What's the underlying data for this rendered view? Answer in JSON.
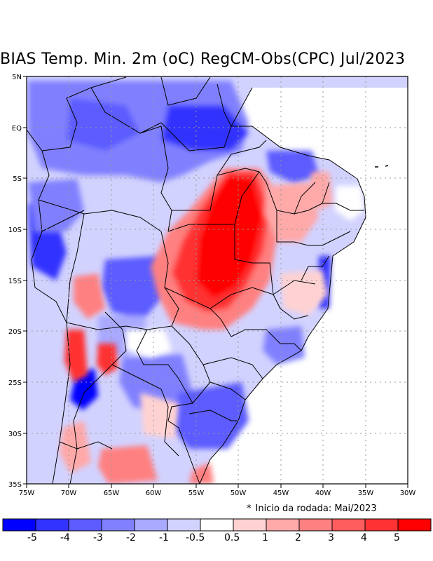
{
  "title": "BIAS Temp. Min. 2m (oC) RegCM-Obs(CPC) Jul/2023",
  "axes": {
    "lat_labels": [
      "5N",
      "EQ",
      "5S",
      "10S",
      "15S",
      "20S",
      "25S",
      "30S",
      "35S"
    ],
    "lon_labels": [
      "75W",
      "70W",
      "65W",
      "60W",
      "55W",
      "50W",
      "45W",
      "40W",
      "35W",
      "30W"
    ]
  },
  "note": {
    "symbol": "*",
    "text": "Inicio da rodada: Mai/2023"
  },
  "legend": {
    "colors": [
      "#0000ff",
      "#3333ff",
      "#5c5cff",
      "#8080ff",
      "#a9a9ff",
      "#d2d2ff",
      "#ffffff",
      "#ffd2d2",
      "#ffa9a9",
      "#ff8080",
      "#ff5c5c",
      "#ff3333",
      "#ff0000"
    ],
    "labels": [
      "-5",
      "-4",
      "-3",
      "-2",
      "-1",
      "-0.5",
      "0.5",
      "1",
      "2",
      "3",
      "4",
      "5"
    ]
  },
  "colors": {
    "border": "#000000",
    "grid": "#999999"
  }
}
